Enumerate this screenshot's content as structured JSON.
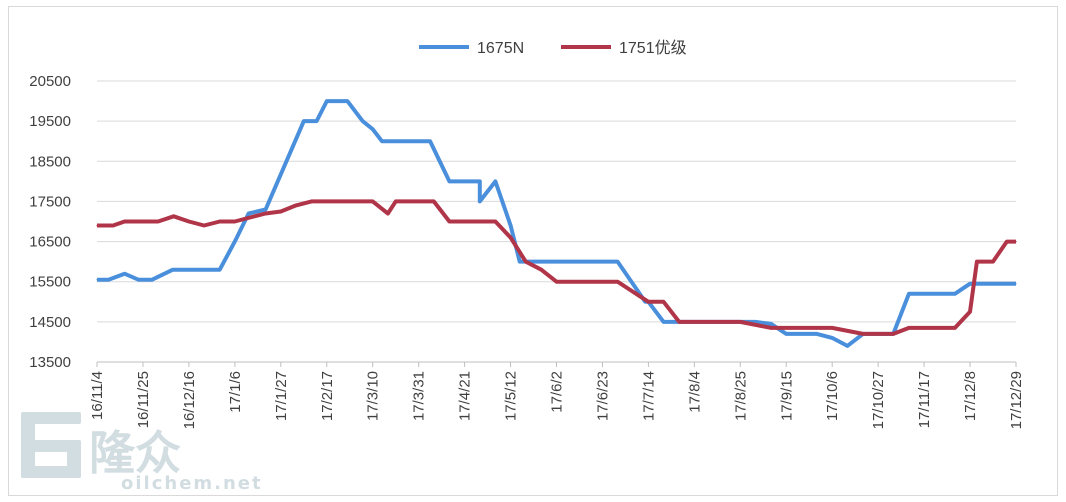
{
  "watermark": {
    "brand": "隆众",
    "url": "oilchem.net"
  },
  "chart_data": {
    "type": "line",
    "title": "",
    "xlabel": "",
    "ylabel": "",
    "ylim": [
      13500,
      20500
    ],
    "yticks": [
      13500,
      14500,
      15500,
      16500,
      17500,
      18500,
      19500,
      20500
    ],
    "ytick_labels": [
      "13500",
      "14500",
      "15500",
      "16500",
      "17500",
      "18500",
      "19500",
      "20500"
    ],
    "grid": "horizontal",
    "legend_position": "top-center",
    "categories": [
      "16/11/4",
      "16/11/25",
      "16/12/16",
      "17/1/6",
      "17/1/27",
      "17/2/17",
      "17/3/10",
      "17/3/31",
      "17/4/21",
      "17/5/12",
      "17/6/2",
      "17/6/23",
      "17/7/14",
      "17/8/4",
      "17/8/25",
      "17/9/15",
      "17/10/6",
      "17/10/27",
      "17/11/17",
      "17/12/8",
      "17/12/29"
    ],
    "series": [
      {
        "name": "1675N",
        "color": "#4a8fdc",
        "points": [
          [
            0,
            15550
          ],
          [
            0.25,
            15550
          ],
          [
            0.6,
            15700
          ],
          [
            0.9,
            15550
          ],
          [
            1.2,
            15550
          ],
          [
            1.65,
            15800
          ],
          [
            2.2,
            15800
          ],
          [
            2.67,
            15800
          ],
          [
            3.0,
            16500
          ],
          [
            3.3,
            17200
          ],
          [
            3.67,
            17300
          ],
          [
            4.5,
            19500
          ],
          [
            4.78,
            19500
          ],
          [
            5.0,
            20000
          ],
          [
            5.45,
            20000
          ],
          [
            5.78,
            19500
          ],
          [
            6.0,
            19300
          ],
          [
            6.2,
            19000
          ],
          [
            7.0,
            19000
          ],
          [
            7.25,
            19000
          ],
          [
            7.67,
            18000
          ],
          [
            8.33,
            18000
          ],
          [
            8.33,
            17500
          ],
          [
            8.67,
            18000
          ],
          [
            9.0,
            16900
          ],
          [
            9.2,
            16000
          ],
          [
            10.0,
            16000
          ],
          [
            10.5,
            16000
          ],
          [
            11.33,
            16000
          ],
          [
            11.93,
            15000
          ],
          [
            12.0,
            15000
          ],
          [
            12.33,
            14500
          ],
          [
            12.67,
            14500
          ],
          [
            13.0,
            14500
          ],
          [
            13.5,
            14500
          ],
          [
            14.33,
            14500
          ],
          [
            14.67,
            14450
          ],
          [
            15.0,
            14200
          ],
          [
            15.67,
            14200
          ],
          [
            16.0,
            14100
          ],
          [
            16.33,
            13900
          ],
          [
            16.67,
            14200
          ],
          [
            17.0,
            14200
          ],
          [
            17.33,
            14200
          ],
          [
            17.67,
            15200
          ],
          [
            18.0,
            15200
          ],
          [
            18.67,
            15200
          ],
          [
            19.0,
            15450
          ],
          [
            19.33,
            15450
          ],
          [
            20.0,
            15450
          ]
        ]
      },
      {
        "name": "1751优级",
        "color": "#b03548",
        "points": [
          [
            0,
            16900
          ],
          [
            0.35,
            16900
          ],
          [
            0.6,
            17000
          ],
          [
            1.0,
            17000
          ],
          [
            1.33,
            17000
          ],
          [
            1.67,
            17130
          ],
          [
            2.0,
            17000
          ],
          [
            2.33,
            16900
          ],
          [
            2.67,
            17000
          ],
          [
            3.0,
            17000
          ],
          [
            3.33,
            17100
          ],
          [
            3.67,
            17200
          ],
          [
            4.0,
            17250
          ],
          [
            4.33,
            17400
          ],
          [
            4.67,
            17500
          ],
          [
            5.0,
            17500
          ],
          [
            6.0,
            17500
          ],
          [
            6.33,
            17200
          ],
          [
            6.5,
            17500
          ],
          [
            7.33,
            17500
          ],
          [
            7.67,
            17000
          ],
          [
            8.0,
            17000
          ],
          [
            8.67,
            17000
          ],
          [
            9.0,
            16600
          ],
          [
            9.33,
            16000
          ],
          [
            9.67,
            15800
          ],
          [
            10.0,
            15500
          ],
          [
            10.67,
            15500
          ],
          [
            11.33,
            15500
          ],
          [
            12.0,
            15000
          ],
          [
            12.33,
            15000
          ],
          [
            12.67,
            14500
          ],
          [
            13.0,
            14500
          ],
          [
            14.0,
            14500
          ],
          [
            14.67,
            14350
          ],
          [
            15.0,
            14350
          ],
          [
            16.0,
            14350
          ],
          [
            16.67,
            14200
          ],
          [
            17.33,
            14200
          ],
          [
            17.67,
            14350
          ],
          [
            18.67,
            14350
          ],
          [
            19.0,
            14750
          ],
          [
            19.15,
            16000
          ],
          [
            19.5,
            16000
          ],
          [
            19.8,
            16500
          ],
          [
            20.0,
            16500
          ]
        ]
      }
    ]
  }
}
